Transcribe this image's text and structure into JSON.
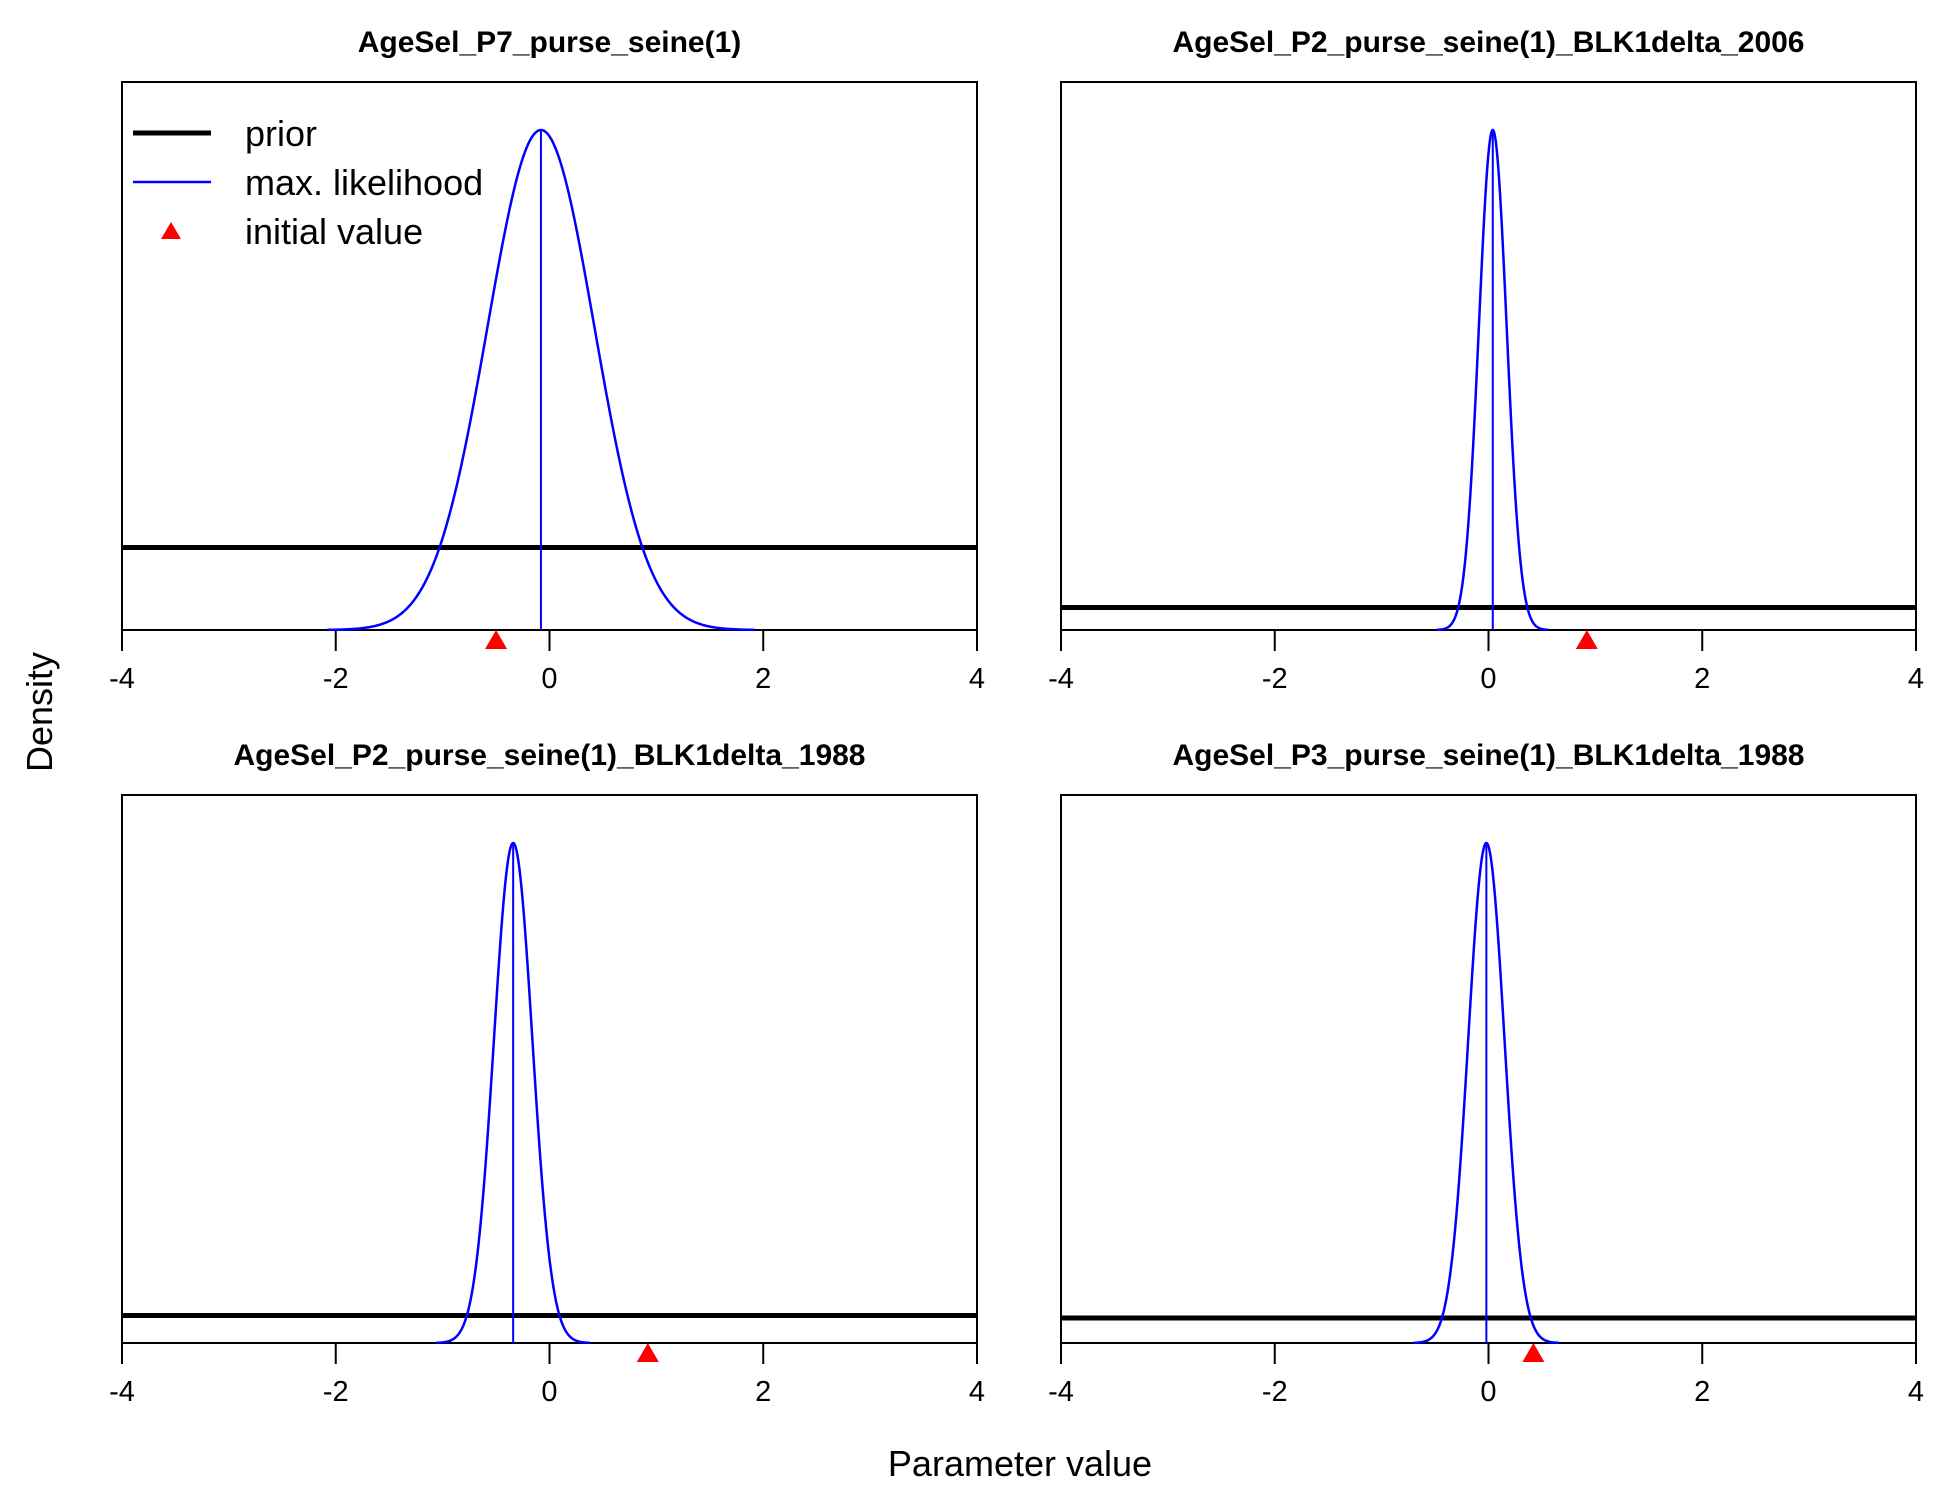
{
  "figure": {
    "xlabel": "Parameter value",
    "ylabel": "Density"
  },
  "legend": {
    "placement": "top-left of first panel",
    "items": [
      {
        "label": "prior",
        "kind": "line",
        "color": "#000000"
      },
      {
        "label": "max. likelihood",
        "kind": "line",
        "color": "#0000ff"
      },
      {
        "label": "initial value",
        "kind": "triangle",
        "color": "#ff0000"
      }
    ]
  },
  "chart_data": [
    {
      "type": "line",
      "title": "AgeSel_P7_purse_seine(1)",
      "xlim": [
        -4,
        4
      ],
      "xticks": [
        -4,
        -2,
        0,
        2,
        4
      ],
      "ml_mean": -0.08,
      "ml_sd": 0.5,
      "prior_level": 0.165,
      "initial_value": -0.5
    },
    {
      "type": "line",
      "title": "AgeSel_P2_purse_seine(1)_BLK1delta_2006",
      "xlim": [
        -4,
        4
      ],
      "xticks": [
        -4,
        -2,
        0,
        2,
        4
      ],
      "ml_mean": 0.04,
      "ml_sd": 0.13,
      "prior_level": 0.045,
      "initial_value": 0.92
    },
    {
      "type": "line",
      "title": "AgeSel_P2_purse_seine(1)_BLK1delta_1988",
      "xlim": [
        -4,
        4
      ],
      "xticks": [
        -4,
        -2,
        0,
        2,
        4
      ],
      "ml_mean": -0.34,
      "ml_sd": 0.18,
      "prior_level": 0.055,
      "initial_value": 0.92
    },
    {
      "type": "line",
      "title": "AgeSel_P3_purse_seine(1)_BLK1delta_1988",
      "xlim": [
        -4,
        4
      ],
      "xticks": [
        -4,
        -2,
        0,
        2,
        4
      ],
      "ml_mean": -0.02,
      "ml_sd": 0.17,
      "prior_level": 0.05,
      "initial_value": 0.42
    }
  ]
}
